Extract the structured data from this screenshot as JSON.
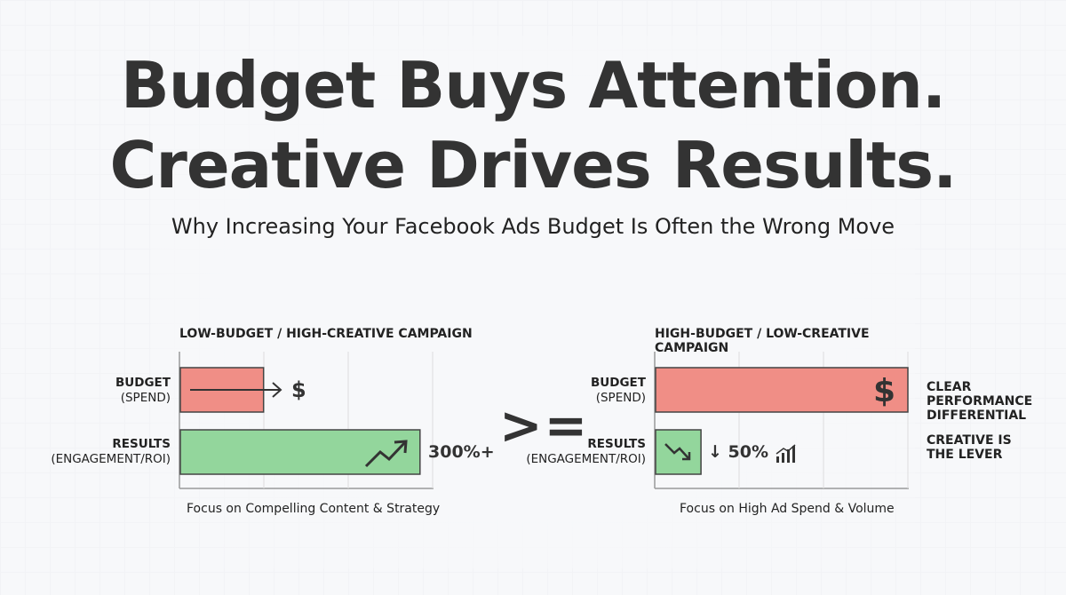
{
  "title_line1": "Budget Buys Attention.",
  "title_line2": "Creative Drives Results.",
  "subtitle": "Why Increasing Your Facebook Ads Budget Is Often the Wrong Move",
  "comparator": ">=",
  "chart_data": [
    {
      "type": "bar",
      "title": "LOW-BUDGET / HIGH-CREATIVE CAMPAIGN",
      "categories": [
        "BUDGET (SPEND)",
        "RESULTS (ENGAGEMENT/ROI)"
      ],
      "values": [
        0.33,
        0.95
      ],
      "xlim": [
        0,
        1
      ],
      "bar_colors": [
        "#f08e86",
        "#93d69c"
      ],
      "grid": true,
      "value_labels": [
        "$",
        "300%+"
      ],
      "caption": "Focus on Compelling Content & Strategy"
    },
    {
      "type": "bar",
      "title": "HIGH-BUDGET / LOW-CREATIVE CAMPAIGN",
      "categories": [
        "BUDGET (SPEND)",
        "RESULTS (ENGAGEMENT/ROI)"
      ],
      "values": [
        1.0,
        0.18
      ],
      "xlim": [
        0,
        1
      ],
      "bar_colors": [
        "#f08e86",
        "#93d69c"
      ],
      "grid": true,
      "value_labels": [
        "$",
        "↓ 50%"
      ],
      "caption": "Focus on High Ad Spend & Volume"
    }
  ],
  "labels": {
    "budget_main": "BUDGET",
    "budget_sub": "(SPEND)",
    "results_main": "RESULTS",
    "results_sub": "(ENGAGEMENT/ROI)"
  },
  "side_notes": {
    "note1": "CLEAR PERFORMANCE DIFFERENTIAL",
    "note2": "CREATIVE IS THE LEVER"
  },
  "icons": {
    "arrow": "long-right-arrow-icon",
    "dollar": "dollar-icon",
    "trend_up": "trend-up-icon",
    "trend_down": "trend-down-icon",
    "signal": "bar-signal-icon"
  }
}
